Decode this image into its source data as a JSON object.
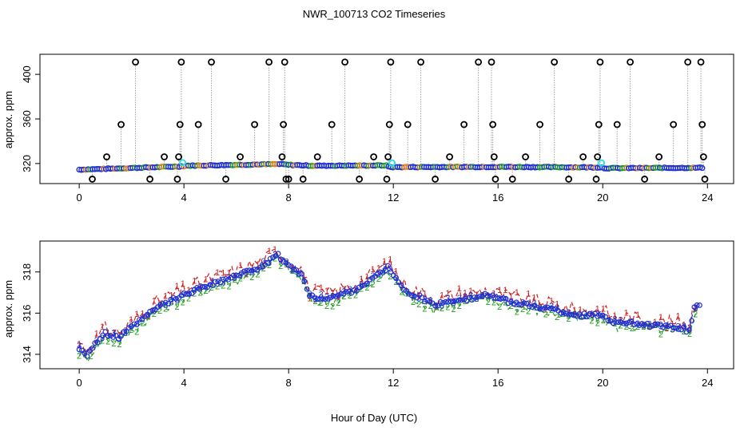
{
  "chart_data": {
    "title": "NWR_100713  CO2 Timeseries",
    "xlabel": "Hour of Day (UTC)",
    "panels": [
      {
        "id": "top",
        "type": "scatter",
        "ylabel": "approx. ppm",
        "xlim": [
          -1.5,
          25
        ],
        "ylim": [
          302,
          418
        ],
        "xticks": [
          0,
          4,
          8,
          12,
          16,
          20,
          24
        ],
        "yticks": [
          320,
          360,
          400
        ],
        "colors": {
          "base": "#2030d0",
          "green": "#20a020",
          "orange": "#e08020",
          "cyan": "#30e0e0",
          "spike": "#000000",
          "dashed": "#a0a0a0"
        },
        "baseline": [
          [
            0.0,
            314.5
          ],
          [
            4.0,
            317.5
          ],
          [
            4.05,
            318.0
          ],
          [
            7.7,
            319.5
          ],
          [
            8.0,
            318.8
          ],
          [
            9.0,
            318.0
          ],
          [
            11.7,
            318.3
          ],
          [
            11.9,
            316.8
          ],
          [
            16.0,
            317.0
          ],
          [
            20.0,
            316.5
          ],
          [
            20.05,
            315.8
          ],
          [
            23.8,
            316.2
          ]
        ],
        "cyan_points": [
          [
            3.95,
            320.8
          ],
          [
            11.95,
            320.5
          ],
          [
            19.95,
            320.5
          ]
        ],
        "spikes": [
          {
            "x": 0.5,
            "y": 306
          },
          {
            "x": 1.05,
            "y": 326
          },
          {
            "x": 1.6,
            "y": 355
          },
          {
            "x": 2.15,
            "y": 411
          },
          {
            "x": 2.7,
            "y": 306
          },
          {
            "x": 3.25,
            "y": 326
          },
          {
            "x": 3.75,
            "y": 306
          },
          {
            "x": 3.8,
            "y": 326
          },
          {
            "x": 3.85,
            "y": 355
          },
          {
            "x": 3.9,
            "y": 411
          },
          {
            "x": 4.55,
            "y": 355
          },
          {
            "x": 5.05,
            "y": 411
          },
          {
            "x": 5.6,
            "y": 306
          },
          {
            "x": 6.15,
            "y": 326
          },
          {
            "x": 6.7,
            "y": 355
          },
          {
            "x": 7.25,
            "y": 411
          },
          {
            "x": 7.75,
            "y": 326
          },
          {
            "x": 7.8,
            "y": 355
          },
          {
            "x": 7.85,
            "y": 411
          },
          {
            "x": 7.9,
            "y": 306
          },
          {
            "x": 8.0,
            "y": 306
          },
          {
            "x": 8.55,
            "y": 306
          },
          {
            "x": 9.1,
            "y": 326
          },
          {
            "x": 9.65,
            "y": 355
          },
          {
            "x": 10.15,
            "y": 411
          },
          {
            "x": 10.7,
            "y": 306
          },
          {
            "x": 11.25,
            "y": 326
          },
          {
            "x": 11.75,
            "y": 306
          },
          {
            "x": 11.8,
            "y": 326
          },
          {
            "x": 11.85,
            "y": 355
          },
          {
            "x": 11.9,
            "y": 411
          },
          {
            "x": 12.55,
            "y": 355
          },
          {
            "x": 13.05,
            "y": 411
          },
          {
            "x": 13.6,
            "y": 306
          },
          {
            "x": 14.15,
            "y": 326
          },
          {
            "x": 14.7,
            "y": 355
          },
          {
            "x": 15.25,
            "y": 411
          },
          {
            "x": 15.75,
            "y": 411
          },
          {
            "x": 15.8,
            "y": 355
          },
          {
            "x": 15.85,
            "y": 326
          },
          {
            "x": 15.9,
            "y": 306
          },
          {
            "x": 16.55,
            "y": 306
          },
          {
            "x": 17.05,
            "y": 326
          },
          {
            "x": 17.6,
            "y": 355
          },
          {
            "x": 18.15,
            "y": 411
          },
          {
            "x": 18.7,
            "y": 306
          },
          {
            "x": 19.25,
            "y": 326
          },
          {
            "x": 19.75,
            "y": 306
          },
          {
            "x": 19.8,
            "y": 326
          },
          {
            "x": 19.85,
            "y": 355
          },
          {
            "x": 19.9,
            "y": 411
          },
          {
            "x": 20.55,
            "y": 355
          },
          {
            "x": 21.05,
            "y": 411
          },
          {
            "x": 21.6,
            "y": 306
          },
          {
            "x": 22.15,
            "y": 326
          },
          {
            "x": 22.7,
            "y": 355
          },
          {
            "x": 23.25,
            "y": 411
          },
          {
            "x": 23.75,
            "y": 411
          },
          {
            "x": 23.8,
            "y": 355
          },
          {
            "x": 23.85,
            "y": 326
          },
          {
            "x": 23.9,
            "y": 306
          }
        ]
      },
      {
        "id": "bottom",
        "type": "line",
        "ylabel": "approx. ppm",
        "xlim": [
          -1.5,
          25
        ],
        "ylim": [
          313.3,
          319.5
        ],
        "xticks": [
          0,
          4,
          8,
          12,
          16,
          20,
          24
        ],
        "yticks": [
          314,
          316,
          318
        ],
        "series": [
          {
            "name": "1",
            "color": "#d02020",
            "dy": 0.25,
            "noise": 0.35
          },
          {
            "name": "2",
            "color": "#20a020",
            "dy": -0.18,
            "noise": 0.25
          },
          {
            "name": "3",
            "color": "#2030d0",
            "dy": 0.05,
            "noise": 0.15
          }
        ],
        "trend": [
          [
            0.0,
            314.3
          ],
          [
            0.3,
            314.0
          ],
          [
            0.6,
            314.5
          ],
          [
            1.0,
            315.0
          ],
          [
            1.5,
            314.8
          ],
          [
            2.0,
            315.3
          ],
          [
            3.0,
            316.3
          ],
          [
            4.0,
            316.9
          ],
          [
            5.0,
            317.4
          ],
          [
            6.0,
            317.8
          ],
          [
            7.0,
            318.3
          ],
          [
            7.6,
            318.8
          ],
          [
            8.0,
            318.3
          ],
          [
            8.5,
            317.9
          ],
          [
            8.8,
            316.8
          ],
          [
            9.5,
            316.7
          ],
          [
            10.5,
            317.1
          ],
          [
            11.0,
            317.5
          ],
          [
            11.8,
            318.2
          ],
          [
            12.5,
            317.0
          ],
          [
            13.0,
            316.8
          ],
          [
            13.5,
            316.4
          ],
          [
            14.0,
            316.5
          ],
          [
            14.5,
            316.7
          ],
          [
            15.0,
            316.7
          ],
          [
            15.5,
            316.9
          ],
          [
            16.0,
            316.7
          ],
          [
            17.0,
            316.4
          ],
          [
            18.0,
            316.2
          ],
          [
            19.0,
            315.9
          ],
          [
            20.0,
            315.9
          ],
          [
            20.5,
            315.5
          ],
          [
            21.0,
            315.6
          ],
          [
            21.5,
            315.4
          ],
          [
            22.0,
            315.4
          ],
          [
            22.5,
            315.3
          ],
          [
            23.0,
            315.3
          ],
          [
            23.3,
            315.1
          ],
          [
            23.5,
            316.3
          ],
          [
            23.8,
            316.5
          ]
        ]
      }
    ]
  }
}
